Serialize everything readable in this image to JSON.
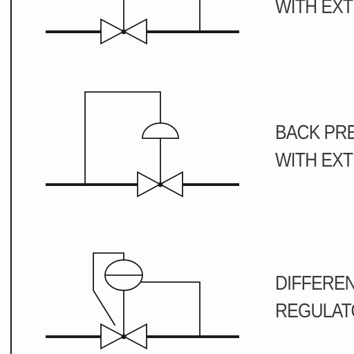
{
  "symbols": [
    {
      "id": "top",
      "lines": [
        "WITH EXTERNAL TAP"
      ]
    },
    {
      "id": "back-pressure",
      "lines": [
        "BACK PRESSURE REGULATOR",
        "WITH EXTERNAL TAP"
      ]
    },
    {
      "id": "differential",
      "lines": [
        "DIFFERENTIAL PRESSURE",
        "REGULATOR"
      ]
    }
  ],
  "colors": {
    "line": "#1a1a1a",
    "text": "#3a3a3a",
    "background": "#fdfdfd"
  }
}
